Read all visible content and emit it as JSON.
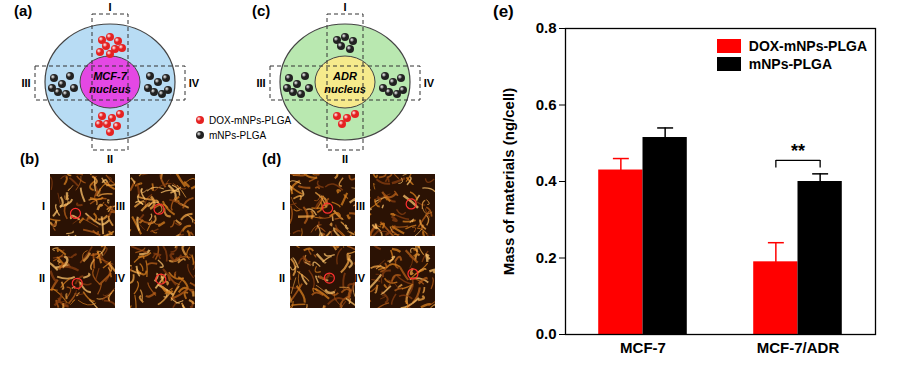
{
  "panels": [
    {
      "label": "(a)",
      "type": "diagram",
      "nucleus": "MCF-7 nucleus",
      "regions": [
        "I",
        "II",
        "III",
        "IV"
      ]
    },
    {
      "label": "(b)",
      "type": "images",
      "images": [
        "I",
        "II",
        "III",
        "IV"
      ]
    },
    {
      "label": "(c)",
      "type": "diagram",
      "nucleus": "ADR nucleus",
      "regions": [
        "I",
        "II",
        "III",
        "IV"
      ]
    },
    {
      "label": "(d)",
      "type": "images",
      "images": [
        "I",
        "II",
        "III",
        "IV"
      ]
    }
  ],
  "diagram_legend": [
    {
      "name": "DOX-mNPs-PLGA",
      "color": "#e52222"
    },
    {
      "name": "mNPs-PLGA",
      "color": "#222222"
    }
  ],
  "chart_data": {
    "type": "bar",
    "title": "(e)",
    "categories": [
      "MCF-7",
      "MCF-7/ADR"
    ],
    "series": [
      {
        "name": "DOX-mNPs-PLGA",
        "color": "#ff0000",
        "values": [
          0.43,
          0.19
        ],
        "errors": [
          0.03,
          0.05
        ]
      },
      {
        "name": "mNPs-PLGA",
        "color": "#000000",
        "values": [
          0.515,
          0.4
        ],
        "errors": [
          0.025,
          0.02
        ]
      }
    ],
    "y_label": "Mass of materials (ng/cell)",
    "ylim": [
      0,
      0.8
    ],
    "yticks": [
      {
        "value": 0,
        "label": "0.0"
      },
      0.2,
      0.4,
      0.6,
      0.8
    ],
    "legend": "top-right",
    "annotations": [
      {
        "text": "**",
        "category": "MCF-7/ADR",
        "between": [
          "DOX-mNPs-PLGA",
          "mNPs-PLGA"
        ]
      }
    ]
  }
}
